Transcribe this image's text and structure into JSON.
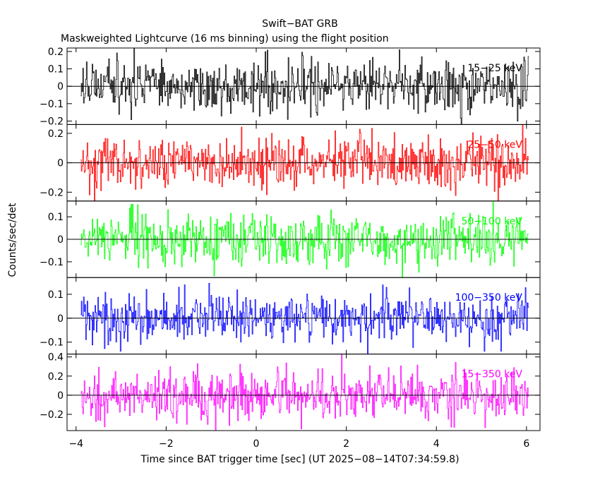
{
  "chart_data": {
    "type": "line",
    "title": "Swift−BAT GRB",
    "subtitle": "Maskweighted Lightcurve (16 ms binning) using the flight position",
    "xlabel": "Time since BAT trigger time [sec] (UT 2025−08−14T07:34:59.8)",
    "ylabel": "Counts/sec/det",
    "xlim": [
      -4.2,
      6.3
    ],
    "x_ticks": [
      -4,
      -2,
      0,
      2,
      4,
      6
    ],
    "x_tick_labels": [
      "−4",
      "−2",
      "0",
      "2",
      "4",
      "6"
    ],
    "x_range_data": [
      -3.9,
      6.05
    ],
    "bin_width_s": 0.016,
    "panels": [
      {
        "band": "15−25 keV",
        "color": "#000000",
        "ylim": [
          -0.22,
          0.22
        ],
        "y_ticks": [
          -0.2,
          -0.1,
          0,
          0.1,
          0.2
        ],
        "y_tick_labels": [
          "−0.2",
          "−0.1",
          "0",
          "0.1",
          "0.2"
        ],
        "noise_amplitude": 0.15
      },
      {
        "band": "25−50 keV",
        "color": "#ff0000",
        "ylim": [
          -0.26,
          0.26
        ],
        "y_ticks": [
          -0.2,
          0,
          0.2
        ],
        "y_tick_labels": [
          "−0.2",
          "0",
          "0.2"
        ],
        "noise_amplitude": 0.17
      },
      {
        "band": "50−100 keV",
        "color": "#00ff00",
        "ylim": [
          -0.17,
          0.17
        ],
        "y_ticks": [
          -0.1,
          0,
          0.1
        ],
        "y_tick_labels": [
          "−0.1",
          "0",
          "0.1"
        ],
        "noise_amplitude": 0.11
      },
      {
        "band": "100−350 keV",
        "color": "#0000ff",
        "ylim": [
          -0.15,
          0.17
        ],
        "y_ticks": [
          -0.1,
          0,
          0.1
        ],
        "y_tick_labels": [
          "−0.1",
          "0",
          "0.1"
        ],
        "noise_amplitude": 0.1
      },
      {
        "band": "15−350 keV",
        "color": "#ff00ff",
        "ylim": [
          -0.37,
          0.43
        ],
        "y_ticks": [
          -0.2,
          0,
          0.2,
          0.4
        ],
        "y_tick_labels": [
          "−0.2",
          "0",
          "0.2",
          "0.4"
        ],
        "noise_amplitude": 0.26
      }
    ]
  }
}
